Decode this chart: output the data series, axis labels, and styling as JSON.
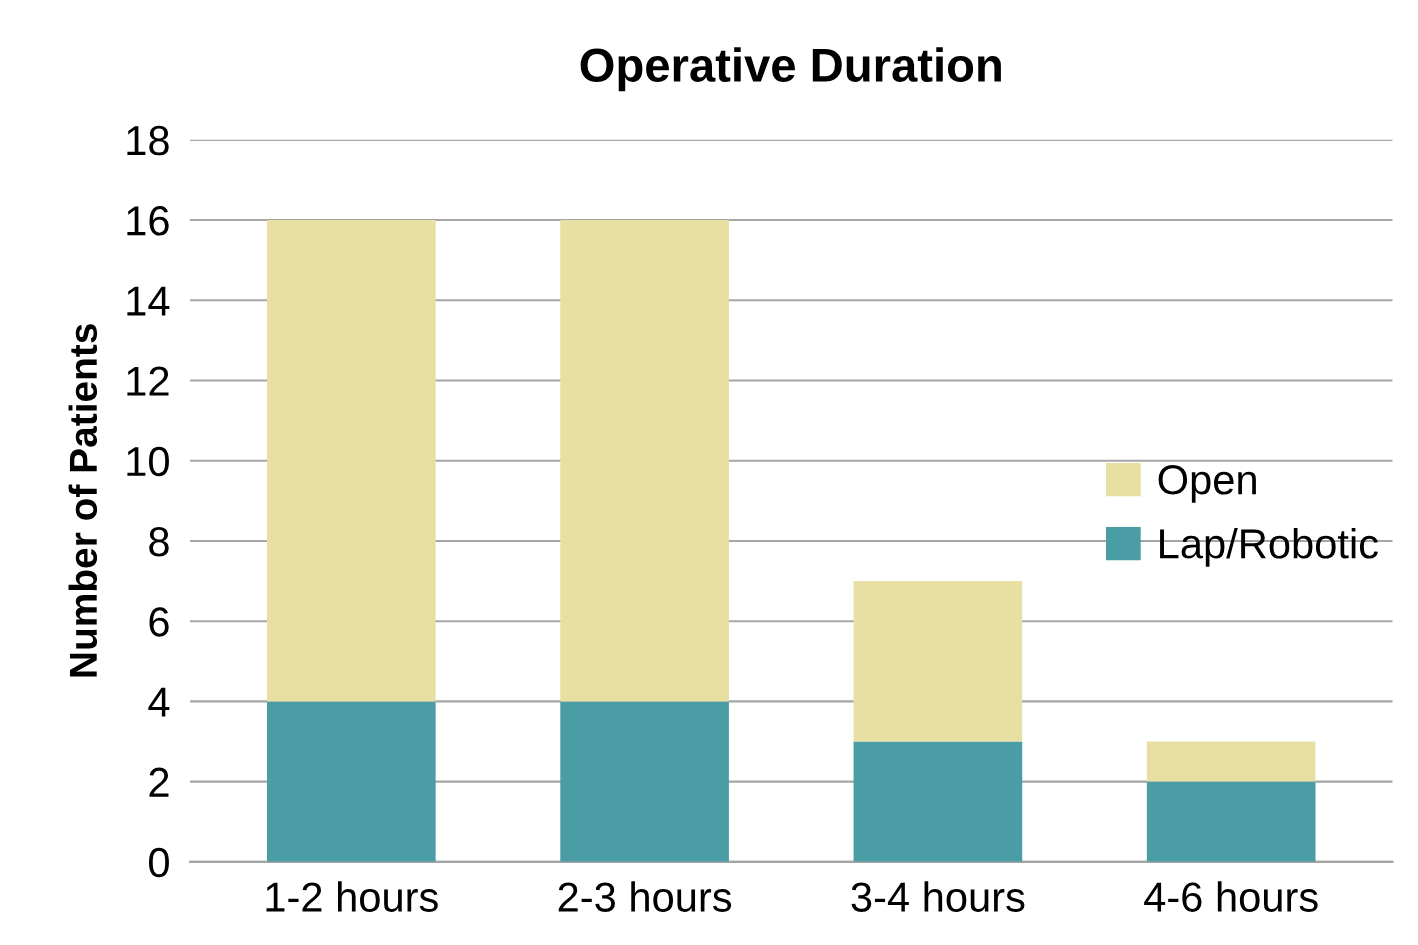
{
  "chart_data": {
    "type": "bar",
    "stacked": true,
    "title": "Operative Duration",
    "ylabel": "Number of Patients",
    "categories": [
      "1-2 hours",
      "2-3 hours",
      "3-4 hours",
      "4-6 hours"
    ],
    "series": [
      {
        "name": "Lap/Robotic",
        "color": "#4a9da4",
        "values": [
          4,
          4,
          3,
          2
        ]
      },
      {
        "name": "Open",
        "color": "#e8dfa3",
        "values": [
          12,
          12,
          4,
          1
        ]
      }
    ],
    "ylim": [
      0,
      18
    ],
    "yticks": [
      0,
      2,
      4,
      6,
      8,
      10,
      12,
      14,
      16,
      18
    ],
    "grid": "y",
    "legend": "right"
  }
}
